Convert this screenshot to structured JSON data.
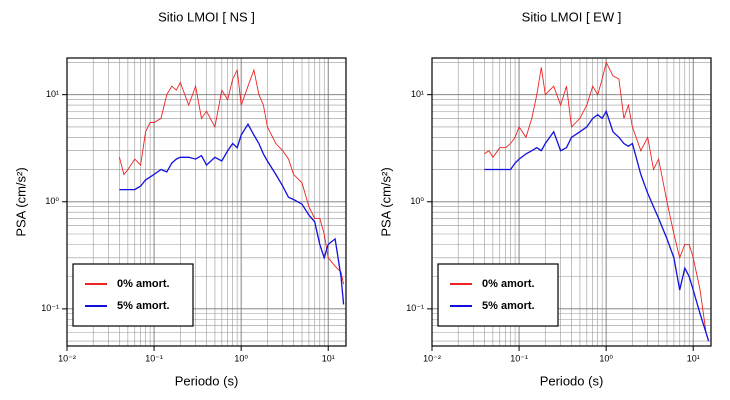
{
  "chart_data": [
    {
      "type": "line",
      "title": "Sitio LMOI [ NS ]",
      "x_label": "Periodo (s)",
      "y_label": "PSA (cm/s²)",
      "log_x": true,
      "log_y": true,
      "grid": true,
      "legend": "lower left",
      "xlim": [
        0.01,
        16
      ],
      "ylim": [
        0.045,
        22
      ],
      "xticks": [
        {
          "value": 0.01,
          "label": "10⁻²"
        },
        {
          "value": 0.1,
          "label": "10⁻¹"
        },
        {
          "value": 1,
          "label": "10⁰"
        },
        {
          "value": 10,
          "label": "10¹"
        }
      ],
      "yticks": [
        {
          "value": 0.1,
          "label": "10⁻¹"
        },
        {
          "value": 1,
          "label": "10⁰"
        },
        {
          "value": 10,
          "label": "10¹"
        }
      ],
      "x": [
        0.04,
        0.045,
        0.05,
        0.06,
        0.07,
        0.08,
        0.09,
        0.1,
        0.12,
        0.14,
        0.16,
        0.18,
        0.2,
        0.25,
        0.3,
        0.35,
        0.4,
        0.5,
        0.6,
        0.7,
        0.8,
        0.9,
        1,
        1.2,
        1.4,
        1.6,
        1.8,
        2,
        2.5,
        3,
        3.5,
        4,
        5,
        6,
        7,
        8,
        9,
        10,
        12,
        14,
        15
      ],
      "series": [
        {
          "name": "0% amort.",
          "color": "#ee2222",
          "values": [
            2.6,
            1.8,
            2.0,
            2.5,
            2.2,
            4.5,
            5.5,
            5.5,
            6,
            10,
            12,
            11,
            13,
            8,
            12,
            6,
            7,
            5,
            11,
            9,
            14,
            17,
            8,
            12,
            17,
            10,
            8,
            5,
            3.5,
            3.0,
            2.5,
            1.8,
            1.5,
            0.9,
            0.7,
            0.7,
            0.5,
            0.3,
            0.25,
            0.22,
            0.17
          ]
        },
        {
          "name": "5% amort.",
          "color": "#1111dd",
          "values": [
            1.3,
            1.3,
            1.3,
            1.3,
            1.4,
            1.6,
            1.7,
            1.8,
            2.0,
            1.9,
            2.3,
            2.5,
            2.6,
            2.6,
            2.5,
            2.7,
            2.2,
            2.6,
            2.4,
            3.0,
            3.5,
            3.2,
            4.2,
            5.3,
            4.2,
            3.5,
            2.8,
            2.4,
            1.8,
            1.4,
            1.1,
            1.05,
            0.95,
            0.75,
            0.65,
            0.4,
            0.3,
            0.4,
            0.45,
            0.2,
            0.11
          ]
        }
      ]
    },
    {
      "type": "line",
      "title": "Sitio LMOI [ EW ]",
      "x_label": "Periodo (s)",
      "y_label": "PSA (cm/s²)",
      "log_x": true,
      "log_y": true,
      "grid": true,
      "legend": "lower left",
      "xlim": [
        0.01,
        16
      ],
      "ylim": [
        0.045,
        22
      ],
      "xticks": [
        {
          "value": 0.01,
          "label": "10⁻²"
        },
        {
          "value": 0.1,
          "label": "10⁻¹"
        },
        {
          "value": 1,
          "label": "10⁰"
        },
        {
          "value": 10,
          "label": "10¹"
        }
      ],
      "yticks": [
        {
          "value": 0.1,
          "label": "10⁻¹"
        },
        {
          "value": 1,
          "label": "10⁰"
        },
        {
          "value": 10,
          "label": "10¹"
        }
      ],
      "x": [
        0.04,
        0.045,
        0.05,
        0.06,
        0.07,
        0.08,
        0.09,
        0.1,
        0.12,
        0.14,
        0.16,
        0.18,
        0.2,
        0.25,
        0.3,
        0.35,
        0.4,
        0.5,
        0.6,
        0.7,
        0.8,
        0.9,
        1,
        1.2,
        1.4,
        1.6,
        1.8,
        2,
        2.5,
        3,
        3.5,
        4,
        5,
        6,
        7,
        8,
        9,
        10,
        12,
        14,
        15
      ],
      "series": [
        {
          "name": "0% amort.",
          "color": "#ee2222",
          "values": [
            2.8,
            3.0,
            2.6,
            3.2,
            3.2,
            3.5,
            4.0,
            5.0,
            4.0,
            6.0,
            10,
            18,
            10,
            12,
            8,
            12,
            5,
            6,
            8,
            12,
            10,
            14,
            20,
            15,
            14,
            6,
            8,
            5,
            3,
            4,
            2,
            2.5,
            1.0,
            0.5,
            0.3,
            0.4,
            0.4,
            0.3,
            0.15,
            0.06,
            0.05
          ]
        },
        {
          "name": "5% amort.",
          "color": "#1111dd",
          "values": [
            2.0,
            2.0,
            2.0,
            2.0,
            2.0,
            2.0,
            2.3,
            2.5,
            2.8,
            3.0,
            3.2,
            3.0,
            3.5,
            4.5,
            3.0,
            3.2,
            4.0,
            4.5,
            5.0,
            6.0,
            6.5,
            6.0,
            7.0,
            4.5,
            4.0,
            3.5,
            3.3,
            3.5,
            1.8,
            1.2,
            0.9,
            0.7,
            0.45,
            0.3,
            0.15,
            0.24,
            0.2,
            0.15,
            0.09,
            0.06,
            0.05
          ]
        }
      ]
    }
  ]
}
